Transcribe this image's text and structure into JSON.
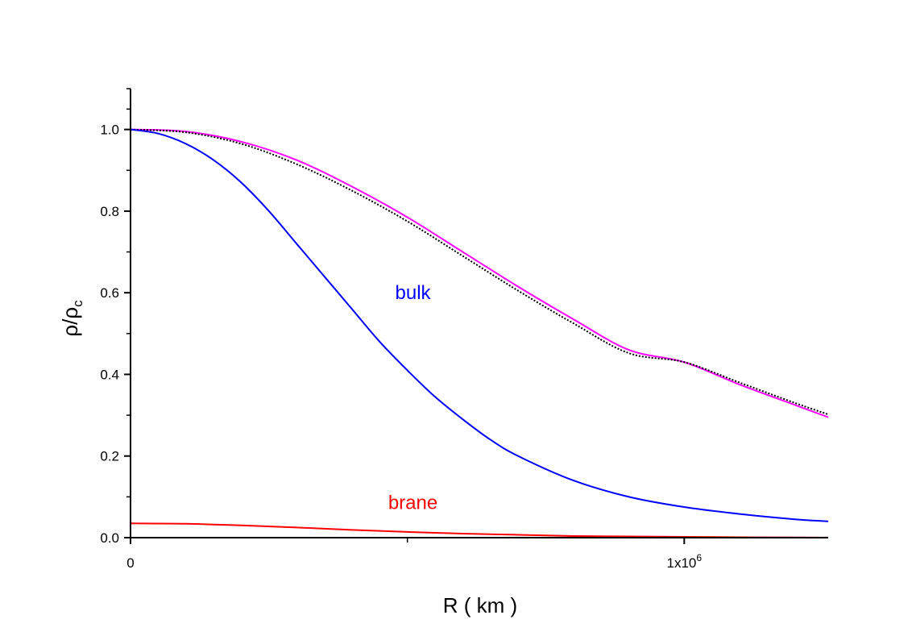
{
  "chart_data": {
    "type": "line",
    "xlabel": "R ( km )",
    "ylabel": {
      "main": "ρ/ρ",
      "sub": "c"
    },
    "xlim": [
      0,
      1260000
    ],
    "ylim": [
      0,
      1.1
    ],
    "x_ticks": [
      {
        "value": 0,
        "label": "0"
      },
      {
        "value": 1000000,
        "label": "1x10",
        "sup": "6"
      }
    ],
    "x_minor_ticks": [
      500000
    ],
    "y_ticks": [
      {
        "value": 0.0,
        "label": "0.0"
      },
      {
        "value": 0.2,
        "label": "0.2"
      },
      {
        "value": 0.4,
        "label": "0.4"
      },
      {
        "value": 0.6,
        "label": "0.6"
      },
      {
        "value": 0.8,
        "label": "0.8"
      },
      {
        "value": 1.0,
        "label": "1.0"
      }
    ],
    "grid": false,
    "legend": "none",
    "annotations": [
      {
        "text": "bulk",
        "x": 510000,
        "y": 0.585,
        "color": "#0000ff"
      },
      {
        "text": "brane",
        "x": 510000,
        "y": 0.07,
        "color": "#ff0000"
      }
    ],
    "series": [
      {
        "color": "#ff00ff",
        "dash": "solid",
        "x": [
          0,
          100000,
          200000,
          300000,
          400000,
          500000,
          600000,
          700000,
          800000,
          900000,
          1000000,
          1100000,
          1200000,
          1260000
        ],
        "y": [
          1.0,
          0.995,
          0.97,
          0.925,
          0.86,
          0.785,
          0.7,
          0.615,
          0.535,
          0.46,
          0.43,
          0.375,
          0.325,
          0.295
        ]
      },
      {
        "color": "#000000",
        "dash": "dotted",
        "x": [
          0,
          100000,
          200000,
          300000,
          400000,
          500000,
          600000,
          700000,
          800000,
          900000,
          1000000,
          1100000,
          1200000,
          1260000
        ],
        "y": [
          1.0,
          0.993,
          0.965,
          0.915,
          0.85,
          0.775,
          0.69,
          0.605,
          0.525,
          0.452,
          0.43,
          0.38,
          0.33,
          0.302
        ]
      },
      {
        "name": "bulk",
        "color": "#0000ff",
        "dash": "solid",
        "x": [
          0,
          50000,
          100000,
          150000,
          200000,
          250000,
          300000,
          350000,
          400000,
          450000,
          500000,
          550000,
          600000,
          650000,
          700000,
          800000,
          900000,
          1000000,
          1100000,
          1200000,
          1260000
        ],
        "y": [
          1.0,
          0.99,
          0.965,
          0.925,
          0.87,
          0.8,
          0.72,
          0.64,
          0.56,
          0.48,
          0.41,
          0.345,
          0.29,
          0.24,
          0.2,
          0.14,
          0.1,
          0.075,
          0.058,
          0.045,
          0.04
        ]
      },
      {
        "name": "brane",
        "color": "#ff0000",
        "dash": "solid",
        "x": [
          0,
          100000,
          200000,
          300000,
          400000,
          500000,
          600000,
          700000,
          800000,
          900000,
          1000000,
          1100000,
          1200000,
          1260000
        ],
        "y": [
          0.035,
          0.034,
          0.03,
          0.025,
          0.019,
          0.014,
          0.01,
          0.007,
          0.004,
          0.003,
          0.002,
          0.001,
          0.0005,
          0.0003
        ]
      }
    ]
  }
}
